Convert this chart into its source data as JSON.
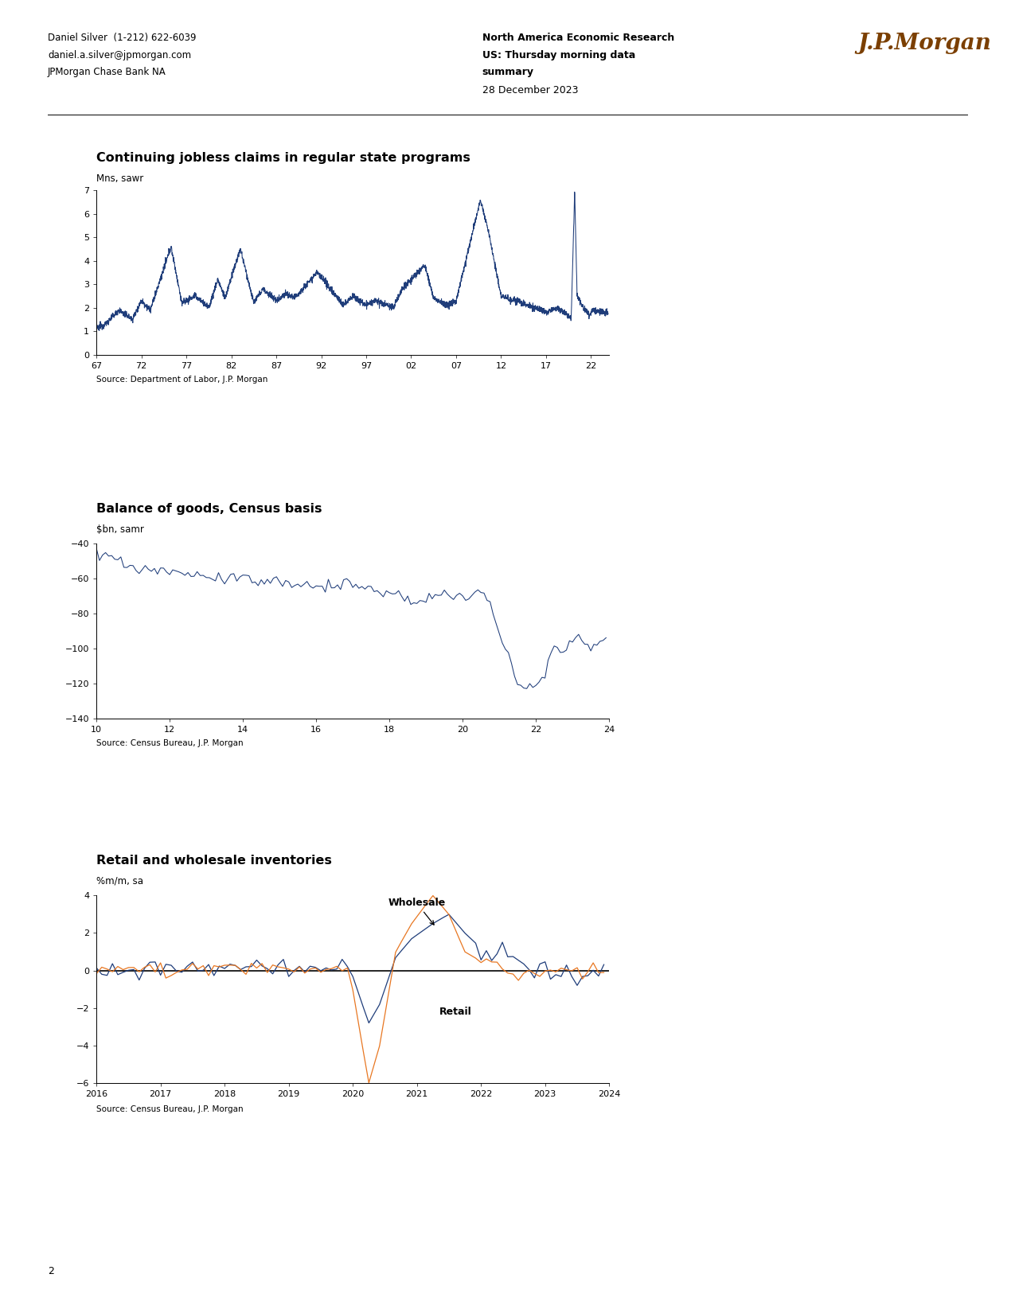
{
  "header": {
    "author": "Daniel Silver  (1-212) 622-6039",
    "email": "daniel.a.silver@jpmorgan.com",
    "firm": "JPMorgan Chase Bank NA",
    "title_center_1": "North America Economic Research",
    "title_center_2": "US: Thursday morning data",
    "title_center_3": "summary",
    "date_center": "28 December 2023",
    "jpmorgan_text": "J.P.Morgan",
    "jpmorgan_color": "#7B3F00"
  },
  "chart1": {
    "title": "Continuing jobless claims in regular state programs",
    "ylabel": "Mns, sawr",
    "source": "Source: Department of Labor, J.P. Morgan",
    "color": "#1F3D7A",
    "xlim": [
      1967,
      2024
    ],
    "ylim": [
      0,
      7
    ],
    "yticks": [
      0,
      1,
      2,
      3,
      4,
      5,
      6,
      7
    ],
    "xticks": [
      1967,
      1972,
      1977,
      1982,
      1987,
      1992,
      1997,
      2002,
      2007,
      2012,
      2017,
      2022
    ],
    "xticklabels": [
      "67",
      "72",
      "77",
      "82",
      "87",
      "92",
      "97",
      "02",
      "07",
      "12",
      "17",
      "22"
    ]
  },
  "chart2": {
    "title": "Balance of goods, Census basis",
    "ylabel": "$bn, samr",
    "source": "Source: Census Bureau, J.P. Morgan",
    "color": "#1F3D7A",
    "xlim": [
      2010,
      2024
    ],
    "ylim": [
      -140,
      -40
    ],
    "yticks": [
      -140,
      -120,
      -100,
      -80,
      -60,
      -40
    ],
    "xticks": [
      2010,
      2012,
      2014,
      2016,
      2018,
      2020,
      2022,
      2024
    ],
    "xticklabels": [
      "10",
      "12",
      "14",
      "16",
      "18",
      "20",
      "22",
      "24"
    ]
  },
  "chart3": {
    "title": "Retail and wholesale inventories",
    "ylabel": "%m/m, sa",
    "source": "Source: Census Bureau, J.P. Morgan",
    "color_wholesale": "#1F3D7A",
    "color_retail": "#E87722",
    "xlim": [
      2016,
      2024
    ],
    "ylim": [
      -6,
      4
    ],
    "yticks": [
      -6,
      -4,
      -2,
      0,
      2,
      4
    ],
    "xticks": [
      2016,
      2017,
      2018,
      2019,
      2020,
      2021,
      2022,
      2023,
      2024
    ],
    "xticklabels": [
      "2016",
      "2017",
      "2018",
      "2019",
      "2020",
      "2021",
      "2022",
      "2023",
      "2024"
    ],
    "annotation_wholesale": "Wholesale",
    "annotation_retail": "Retail"
  },
  "page_number": "2",
  "line_color": "#000000"
}
